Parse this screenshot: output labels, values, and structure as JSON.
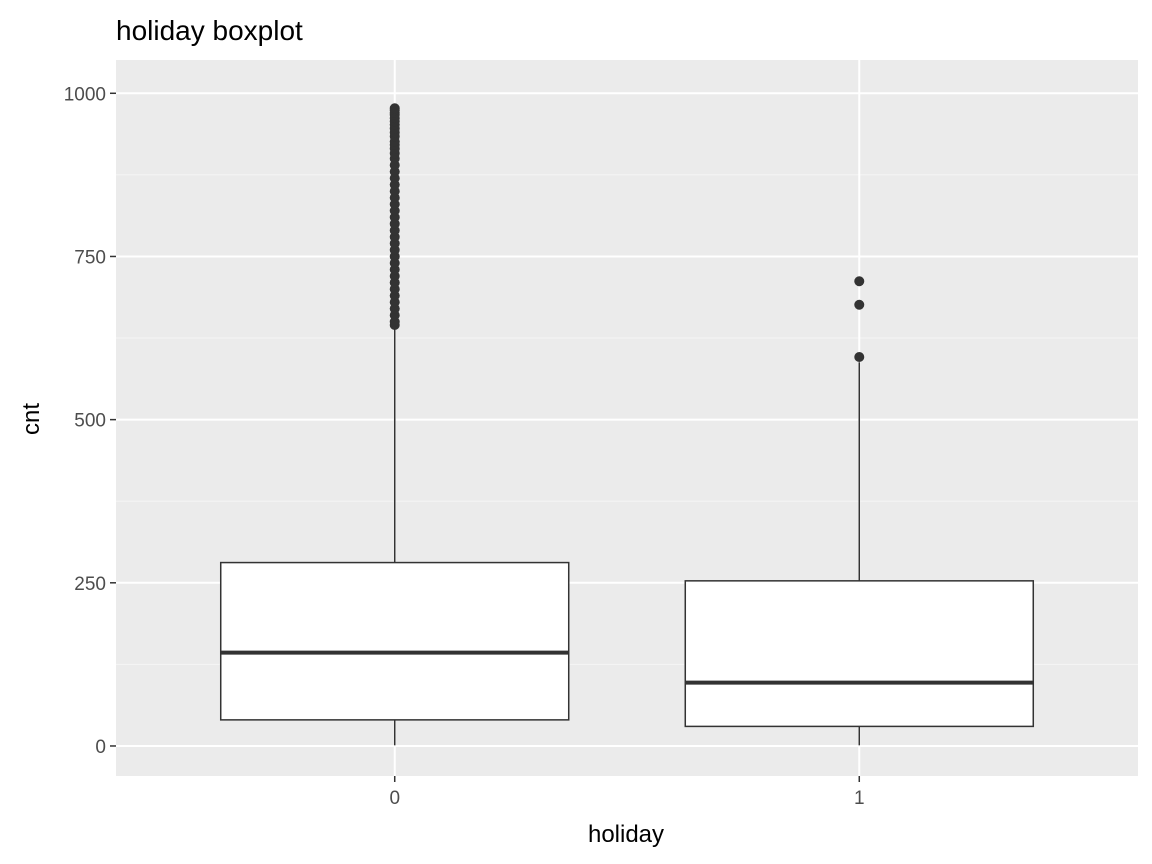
{
  "chart_data": {
    "type": "boxplot",
    "title": "holiday boxplot",
    "xlabel": "holiday",
    "ylabel": "cnt",
    "categories": [
      "0",
      "1"
    ],
    "ylim": [
      -46,
      1051
    ],
    "y_ticks": [
      0,
      250,
      500,
      750,
      1000
    ],
    "y_tick_labels": [
      "0",
      "250",
      "500",
      "750",
      "1000"
    ],
    "grid": true,
    "boxes": [
      {
        "category": "0",
        "whisker_low": 1,
        "q1": 40,
        "median": 143,
        "q3": 281,
        "whisker_high": 642,
        "outliers": [
          645,
          650,
          660,
          670,
          680,
          690,
          700,
          710,
          720,
          730,
          740,
          750,
          760,
          770,
          780,
          790,
          800,
          810,
          820,
          830,
          840,
          850,
          860,
          870,
          880,
          890,
          900,
          908,
          915,
          921,
          926,
          934,
          940,
          946,
          952,
          957,
          962,
          967,
          970,
          974,
          977
        ]
      },
      {
        "category": "1",
        "whisker_low": 1,
        "q1": 30,
        "median": 97,
        "q3": 253,
        "whisker_high": 588,
        "outliers": [
          596,
          676,
          712
        ]
      }
    ],
    "colors": {
      "panel_background": "#ebebeb",
      "grid_major": "#ffffff",
      "grid_minor": "#f5f5f5",
      "box_fill": "#ffffff",
      "box_line": "#333333",
      "outlier": "#333333",
      "tick_label": "#4d4d4d",
      "tick_mark": "#333333"
    }
  }
}
